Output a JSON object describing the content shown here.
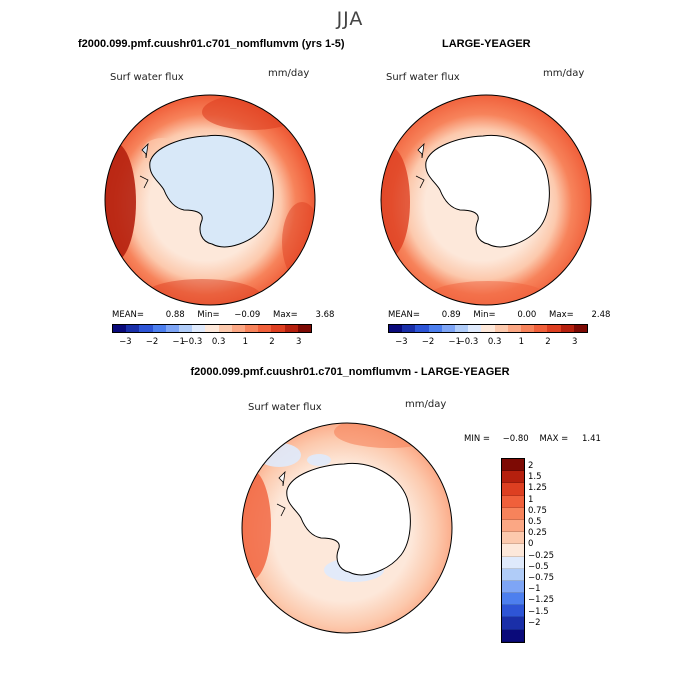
{
  "season": "JJA",
  "panel_left": {
    "title": "f2000.099.pmf.cuushr01.c701_nomflumvm (yrs 1-5)",
    "variable": "Surf water flux",
    "units": "mm/day",
    "mean_label": "MEAN=",
    "mean": "0.88",
    "min_label": "Min=",
    "min": "−0.09",
    "max_label": "Max=",
    "max": "3.68"
  },
  "panel_right": {
    "title": "LARGE-YEAGER",
    "variable": "Surf water flux",
    "units": "mm/day",
    "mean_label": "MEAN=",
    "mean": "0.89",
    "min_label": "Min=",
    "min": "0.00",
    "max_label": "Max=",
    "max": "2.48"
  },
  "panel_diff": {
    "title": "f2000.099.pmf.cuushr01.c701_nomflumvm - LARGE-YEAGER",
    "variable": "Surf water flux",
    "units": "mm/day",
    "min_label": "MIN =",
    "min": "−0.80",
    "max_label": "MAX =",
    "max": "1.41"
  },
  "colorbar_top": {
    "colors": [
      "#0a0a7a",
      "#1a2fa8",
      "#2e55d6",
      "#4d7fee",
      "#7ea5f5",
      "#b0ccf8",
      "#dfeafc",
      "#fde8da",
      "#fcc9ad",
      "#fba784",
      "#f7835b",
      "#f0603b",
      "#dd3f21",
      "#b5200e",
      "#7d0a04"
    ],
    "ticks": [
      "−3",
      "−2",
      "−1",
      "−0.3",
      "0.3",
      "1",
      "2",
      "3"
    ]
  },
  "colorbar_diff": {
    "colors": [
      "#7d0a04",
      "#b5200e",
      "#dd3f21",
      "#f0603b",
      "#f7835b",
      "#fba784",
      "#fcc9ad",
      "#fde8da",
      "#dfeafc",
      "#b0ccf8",
      "#7ea5f5",
      "#4d7fee",
      "#2e55d6",
      "#1a2fa8",
      "#0a0a7a"
    ],
    "labels": [
      "2",
      "1.5",
      "1.25",
      "1",
      "0.75",
      "0.5",
      "0.25",
      "0",
      "−0.25",
      "−0.5",
      "−0.75",
      "−1",
      "−1.25",
      "−1.5",
      "−2"
    ]
  }
}
